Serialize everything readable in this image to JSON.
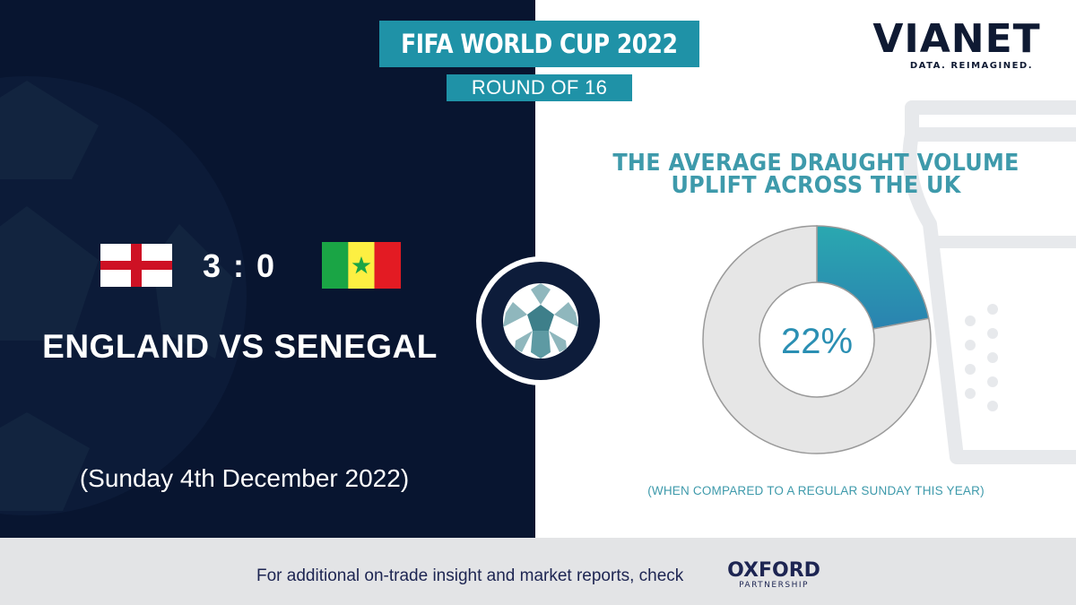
{
  "header": {
    "title": "FIFA WORLD CUP 2022",
    "subtitle": "ROUND OF 16"
  },
  "match": {
    "home_flag": "england-flag-icon",
    "away_flag": "senegal-flag-icon",
    "score": "3 : 0",
    "title": "ENGLAND VS SENEGAL",
    "date": "(Sunday 4th December 2022)"
  },
  "brand": {
    "logo_text": "VIANET",
    "tagline": "DATA. REIMAGINED."
  },
  "chart_data": {
    "type": "pie",
    "title": "THE AVERAGE DRAUGHT VOLUME UPLIFT ACROSS THE UK",
    "subtitle": "(WHEN COMPARED TO A REGULAR SUNDAY THIS YEAR)",
    "center_label": "22%",
    "values": [
      22,
      78
    ],
    "colors": [
      "#2a9fb0",
      "#e6e6e6"
    ]
  },
  "footer": {
    "text": "For additional on-trade insight and market reports, check",
    "partner_name": "OXFORD",
    "partner_sub": "PARTNERSHIP"
  },
  "colors": {
    "navy": "#081530",
    "teal": "#1f92a7",
    "heading_teal": "#3e9aab",
    "footer_bg": "#e3e4e6"
  }
}
